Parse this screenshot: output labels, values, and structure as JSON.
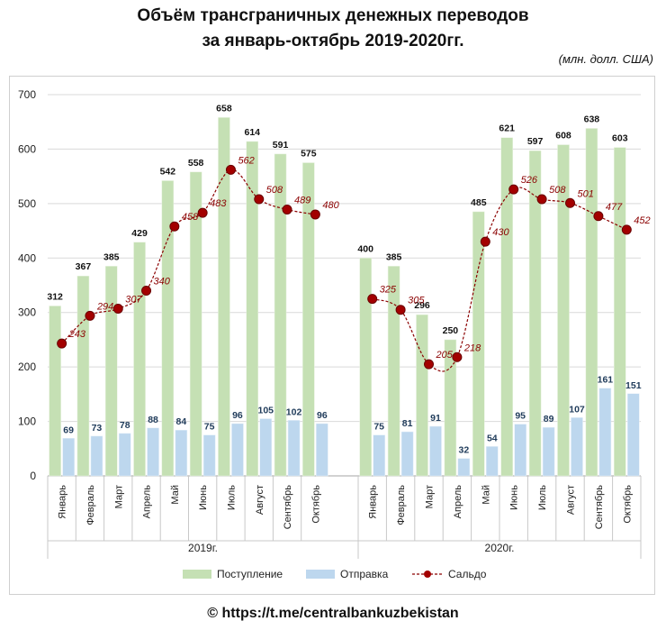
{
  "title_line1": "Объём трансграничных денежных переводов",
  "title_line2": "за январь-октябрь 2019-2020гг.",
  "unit_note": "(млн. долл. США)",
  "footer": "© https://t.me/centralbankuzbekistan",
  "colors": {
    "inflow": "#c5e0b4",
    "outflow": "#bdd7ee",
    "balance": "#8b0000",
    "grid": "#d9d9d9"
  },
  "chart_data": {
    "type": "bar",
    "ylim": [
      0,
      700
    ],
    "yticks": [
      0,
      100,
      200,
      300,
      400,
      500,
      600,
      700
    ],
    "grid": true,
    "legend_position": "bottom",
    "groups": [
      {
        "label": "2019г.",
        "categories": [
          "Январь",
          "Февраль",
          "Март",
          "Апрель",
          "Май",
          "Июнь",
          "Июль",
          "Август",
          "Сентябрь",
          "Октябрь"
        ]
      },
      {
        "label": "2020г.",
        "categories": [
          "Январь",
          "Февраль",
          "Март",
          "Апрель",
          "Май",
          "Июнь",
          "Июль",
          "Август",
          "Сентябрь",
          "Октябрь"
        ]
      }
    ],
    "series": [
      {
        "name": "Поступление",
        "type": "bar",
        "values": [
          [
            312,
            367,
            385,
            429,
            542,
            558,
            658,
            614,
            591,
            575
          ],
          [
            400,
            385,
            296,
            250,
            485,
            621,
            597,
            608,
            638,
            603
          ]
        ]
      },
      {
        "name": "Отправка",
        "type": "bar",
        "values": [
          [
            69,
            73,
            78,
            88,
            84,
            75,
            96,
            105,
            102,
            96
          ],
          [
            75,
            81,
            91,
            32,
            54,
            95,
            89,
            107,
            161,
            151
          ]
        ]
      },
      {
        "name": "Сальдо",
        "type": "line",
        "values": [
          [
            243,
            294,
            307,
            340,
            458,
            483,
            562,
            508,
            489,
            480
          ],
          [
            325,
            305,
            205,
            218,
            430,
            526,
            508,
            501,
            477,
            452
          ]
        ]
      }
    ]
  }
}
